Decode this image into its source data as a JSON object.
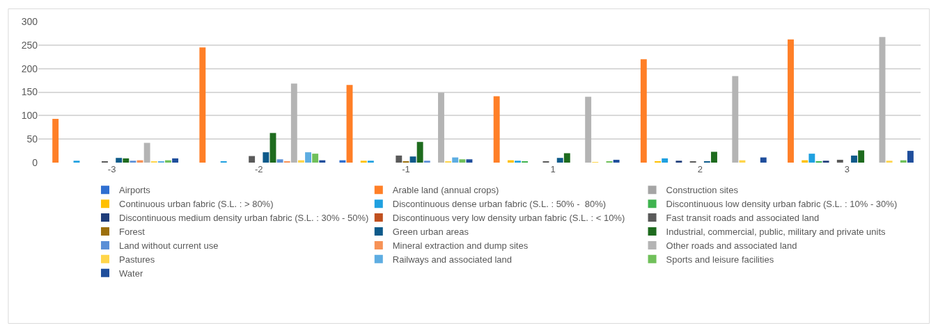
{
  "chart_data": {
    "type": "bar",
    "categories": [
      "-3",
      "-2",
      "-1",
      "1",
      "2",
      "3"
    ],
    "ylim": [
      0,
      300
    ],
    "yticks": [
      0,
      50,
      100,
      150,
      200,
      250,
      300
    ],
    "grid": "y",
    "legend": "bottom",
    "series": [
      {
        "name": "Airports",
        "color": "#2f6fd1",
        "values": [
          0,
          0,
          5,
          0,
          0,
          0
        ]
      },
      {
        "name": "Arable land (annual crops)",
        "color": "#ff7f27",
        "values": [
          93,
          245,
          165,
          141,
          220,
          262
        ]
      },
      {
        "name": "Construction sites",
        "color": "#a5a5a5",
        "values": [
          0,
          0,
          0,
          0,
          0,
          0
        ]
      },
      {
        "name": "Continuous urban fabric (S.L. : > 80%)",
        "color": "#ffc000",
        "values": [
          0,
          0,
          4,
          5,
          2,
          5
        ]
      },
      {
        "name": "Discontinuous dense urban fabric (S.L. : 50% -  80%)",
        "color": "#1fa0e0",
        "values": [
          4,
          3,
          4,
          4,
          9,
          19
        ]
      },
      {
        "name": "Discontinuous low density urban fabric (S.L. : 10% - 30%)",
        "color": "#3fb34f",
        "values": [
          0,
          0,
          0,
          2,
          0,
          2
        ]
      },
      {
        "name": "Discontinuous medium density urban fabric (S.L. : 30% - 50%)",
        "color": "#1f3d7a",
        "values": [
          0,
          0,
          0,
          0,
          4,
          4
        ]
      },
      {
        "name": "Discontinuous very low density urban fabric (S.L. : < 10%)",
        "color": "#c0501f",
        "values": [
          0,
          0,
          0,
          0,
          0,
          0
        ]
      },
      {
        "name": "Fast transit roads and associated land",
        "color": "#5a5a5a",
        "values": [
          3,
          14,
          15,
          3,
          3,
          6
        ]
      },
      {
        "name": "Forest",
        "color": "#9c6f0c",
        "values": [
          0,
          0,
          2,
          0,
          0,
          0
        ]
      },
      {
        "name": "Green urban areas",
        "color": "#0e5a8a",
        "values": [
          10,
          22,
          13,
          10,
          2,
          15
        ]
      },
      {
        "name": "Industrial, commercial, public, military and private units",
        "color": "#1e6b1e",
        "values": [
          9,
          63,
          44,
          20,
          23,
          26
        ]
      },
      {
        "name": "Land without current use",
        "color": "#5b8fd6",
        "values": [
          4,
          7,
          4,
          0,
          0,
          0
        ]
      },
      {
        "name": "Mineral extraction and dump sites",
        "color": "#f79256",
        "values": [
          5,
          3,
          0,
          0,
          0,
          0
        ]
      },
      {
        "name": "Other roads and associated land",
        "color": "#b4b4b4",
        "values": [
          42,
          168,
          149,
          140,
          184,
          267
        ]
      },
      {
        "name": "Pastures",
        "color": "#ffd54a",
        "values": [
          3,
          5,
          3,
          1,
          5,
          4
        ]
      },
      {
        "name": "Railways and associated land",
        "color": "#5dade2",
        "values": [
          3,
          22,
          11,
          0,
          0,
          0
        ]
      },
      {
        "name": "Sports and leisure facilities",
        "color": "#70c05a",
        "values": [
          5,
          19,
          7,
          3,
          0,
          5
        ]
      },
      {
        "name": "Water",
        "color": "#1f4e9c",
        "values": [
          9,
          5,
          7,
          6,
          11,
          25
        ]
      }
    ]
  }
}
